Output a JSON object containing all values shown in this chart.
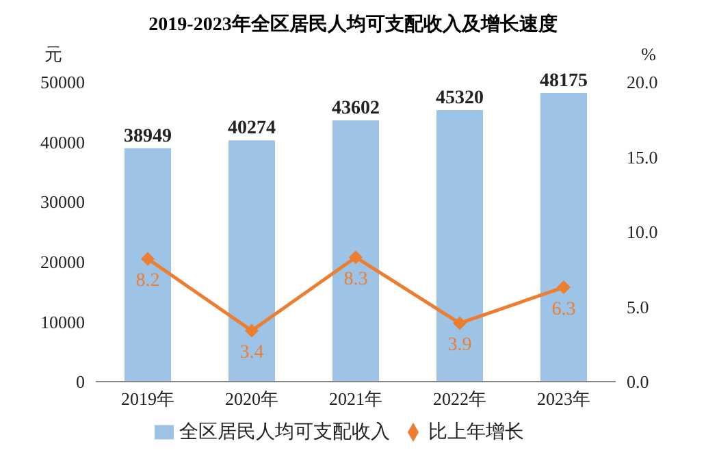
{
  "chart_data": {
    "type": "bar",
    "title": "2019-2023年全区居民人均可支配收入及增长速度",
    "categories": [
      "2019年",
      "2020年",
      "2021年",
      "2022年",
      "2023年"
    ],
    "series": [
      {
        "name": "全区居民人均可支配收入",
        "color": "#9dc3e6",
        "values": [
          38949,
          40274,
          43602,
          45320,
          48175
        ]
      },
      {
        "name": "比上年增长",
        "type": "line",
        "axis": "y2",
        "color": "#ed7d31",
        "values": [
          8.2,
          3.4,
          8.3,
          3.9,
          6.3
        ]
      }
    ],
    "ylabel": "元",
    "y2label": "%",
    "ylim": [
      0,
      50000
    ],
    "yticks": [
      0,
      10000,
      20000,
      30000,
      40000,
      50000
    ],
    "y2lim": [
      0,
      20
    ],
    "y2ticks": [
      {
        "value": 0,
        "label": "0.0"
      },
      {
        "value": 5,
        "label": "5.0"
      },
      {
        "value": 10,
        "label": "10.0"
      },
      {
        "value": 15,
        "label": "15.0"
      },
      {
        "value": 20,
        "label": "20.0"
      }
    ],
    "data_labels": true,
    "legend": "bottom",
    "marker": "diamond",
    "grid": false
  }
}
